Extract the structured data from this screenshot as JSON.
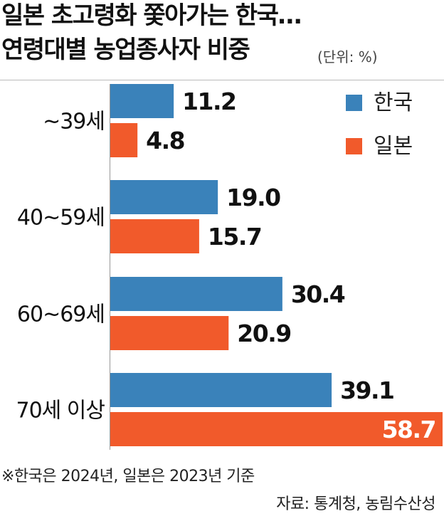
{
  "title_lines": [
    "일본 초고령화 쫓아가는 한국…",
    "연령대별 농업종사자 비중"
  ],
  "unit_label": "(단위: %)",
  "chart_data": {
    "type": "bar",
    "orientation": "horizontal",
    "categories": [
      "~39세",
      "40~59세",
      "60~69세",
      "70세 이상"
    ],
    "series": [
      {
        "name": "한국",
        "color": "#3a82ba",
        "values": [
          11.2,
          19.0,
          30.4,
          39.1
        ]
      },
      {
        "name": "일본",
        "color": "#f15a2b",
        "values": [
          4.8,
          15.7,
          20.9,
          58.7
        ]
      }
    ],
    "value_labels": [
      [
        "11.2",
        "19.0",
        "30.4",
        "39.1"
      ],
      [
        "4.8",
        "15.7",
        "20.9",
        "58.7"
      ]
    ],
    "xlim": [
      0,
      58.7
    ],
    "grid": false,
    "legend_position": "top-right"
  },
  "footnote": "※한국은 2024년, 일본은 2023년 기준",
  "source": "자료: 통계청, 농림수산성"
}
